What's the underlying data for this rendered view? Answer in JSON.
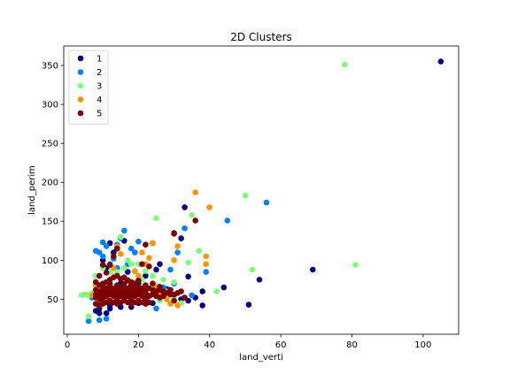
{
  "chart_data": {
    "type": "scatter",
    "title": "2D Clusters",
    "xlabel": "land_verti",
    "ylabel": "land_perim",
    "xlim": [
      -1,
      110
    ],
    "ylim": [
      5,
      375
    ],
    "xticks": [
      0,
      20,
      40,
      60,
      80,
      100
    ],
    "yticks": [
      50,
      100,
      150,
      200,
      250,
      300,
      350
    ],
    "grid": false,
    "legend_position": "top-left",
    "series": [
      {
        "name": "1",
        "color": "#00007f",
        "points": [
          [
            105,
            355
          ],
          [
            69,
            88
          ],
          [
            54,
            75
          ],
          [
            51,
            43
          ],
          [
            44,
            65
          ],
          [
            38,
            42
          ],
          [
            38,
            60
          ],
          [
            34,
            79
          ],
          [
            33,
            168
          ],
          [
            32,
            128
          ],
          [
            30,
            135
          ],
          [
            26,
            95
          ],
          [
            25,
            88
          ],
          [
            24,
            122
          ],
          [
            22,
            80
          ],
          [
            21,
            60
          ],
          [
            20,
            70
          ],
          [
            19,
            58
          ],
          [
            18,
            50
          ],
          [
            17,
            85
          ],
          [
            16,
            125
          ],
          [
            16,
            62
          ],
          [
            15,
            70
          ],
          [
            14,
            115
          ],
          [
            14,
            48
          ],
          [
            13,
            110
          ],
          [
            12,
            122
          ],
          [
            12,
            42
          ],
          [
            11,
            90
          ],
          [
            10,
            100
          ],
          [
            10,
            45
          ],
          [
            9,
            38
          ],
          [
            8,
            35
          ],
          [
            28,
            63
          ],
          [
            30,
            55
          ],
          [
            32,
            50
          ],
          [
            34,
            48
          ],
          [
            36,
            52
          ],
          [
            26,
            52
          ],
          [
            24,
            45
          ],
          [
            22,
            50
          ],
          [
            20,
            45
          ],
          [
            18,
            40
          ],
          [
            15,
            40
          ],
          [
            12,
            38
          ],
          [
            11,
            32
          ],
          [
            9,
            32
          ],
          [
            10,
            60
          ],
          [
            13,
            55
          ],
          [
            16,
            52
          ]
        ]
      },
      {
        "name": "2",
        "color": "#0080ff",
        "points": [
          [
            56,
            174
          ],
          [
            45,
            151
          ],
          [
            33,
            141
          ],
          [
            31,
            110
          ],
          [
            29,
            88
          ],
          [
            25,
            38
          ],
          [
            20,
            124
          ],
          [
            19,
            110
          ],
          [
            18,
            115
          ],
          [
            16,
            138
          ],
          [
            15,
            128
          ],
          [
            14,
            120
          ],
          [
            13,
            102
          ],
          [
            12,
            95
          ],
          [
            11,
            118
          ],
          [
            10,
            123
          ],
          [
            10,
            105
          ],
          [
            9,
            110
          ],
          [
            8,
            112
          ],
          [
            7,
            52
          ],
          [
            6,
            22
          ],
          [
            9,
            23
          ],
          [
            11,
            25
          ],
          [
            14,
            90
          ],
          [
            17,
            95
          ],
          [
            27,
            65
          ],
          [
            30,
            70
          ],
          [
            35,
            55
          ],
          [
            39,
            85
          ]
        ]
      },
      {
        "name": "3",
        "color": "#7cff79",
        "points": [
          [
            78,
            351
          ],
          [
            81,
            94
          ],
          [
            50,
            183
          ],
          [
            52,
            88
          ],
          [
            42,
            60
          ],
          [
            37,
            112
          ],
          [
            35,
            158
          ],
          [
            34,
            97
          ],
          [
            30,
            72
          ],
          [
            27,
            75
          ],
          [
            25,
            154
          ],
          [
            25,
            68
          ],
          [
            24,
            80
          ],
          [
            22,
            86
          ],
          [
            21,
            75
          ],
          [
            20,
            95
          ],
          [
            19,
            85
          ],
          [
            18,
            95
          ],
          [
            17,
            100
          ],
          [
            16,
            90
          ],
          [
            15,
            130
          ],
          [
            14,
            85
          ],
          [
            12,
            85
          ],
          [
            11,
            70
          ],
          [
            10,
            90
          ],
          [
            8,
            80
          ],
          [
            7,
            58
          ],
          [
            5,
            56
          ],
          [
            4,
            55
          ],
          [
            6,
            55
          ],
          [
            6,
            28
          ],
          [
            28,
            60
          ],
          [
            30,
            52
          ],
          [
            32,
            45
          ],
          [
            26,
            48
          ]
        ]
      },
      {
        "name": "4",
        "color": "#ff9400",
        "points": [
          [
            36,
            187
          ],
          [
            40,
            168
          ],
          [
            39,
            105
          ],
          [
            39,
            95
          ],
          [
            31,
            118
          ],
          [
            30,
            100
          ],
          [
            24,
            122
          ],
          [
            23,
            103
          ],
          [
            22,
            95
          ],
          [
            21,
            110
          ],
          [
            20,
            80
          ],
          [
            19,
            86
          ],
          [
            18,
            70
          ],
          [
            17,
            75
          ],
          [
            15,
            108
          ],
          [
            14,
            118
          ],
          [
            13,
            90
          ],
          [
            12,
            62
          ],
          [
            11,
            48
          ],
          [
            9,
            45
          ],
          [
            8,
            68
          ],
          [
            7,
            55
          ],
          [
            31,
            42
          ],
          [
            29,
            44
          ],
          [
            28,
            50
          ],
          [
            26,
            58
          ],
          [
            25,
            65
          ],
          [
            23,
            55
          ]
        ]
      },
      {
        "name": "5",
        "color": "#7f0000",
        "points": [
          [
            36,
            151
          ],
          [
            30,
            134
          ],
          [
            22,
            120
          ],
          [
            23,
            92
          ],
          [
            21,
            95
          ],
          [
            14,
            115
          ],
          [
            13,
            105
          ],
          [
            12,
            94
          ],
          [
            11,
            84
          ],
          [
            10,
            94
          ],
          [
            9,
            80
          ],
          [
            8,
            72
          ],
          [
            9,
            68
          ],
          [
            10,
            70
          ],
          [
            11,
            72
          ],
          [
            12,
            75
          ],
          [
            13,
            78
          ],
          [
            14,
            80
          ],
          [
            15,
            76
          ],
          [
            16,
            78
          ],
          [
            17,
            74
          ],
          [
            18,
            72
          ],
          [
            19,
            70
          ],
          [
            20,
            74
          ],
          [
            8,
            62
          ],
          [
            9,
            60
          ],
          [
            10,
            62
          ],
          [
            11,
            64
          ],
          [
            12,
            66
          ],
          [
            13,
            64
          ],
          [
            14,
            62
          ],
          [
            15,
            64
          ],
          [
            16,
            66
          ],
          [
            17,
            64
          ],
          [
            18,
            62
          ],
          [
            19,
            64
          ],
          [
            20,
            66
          ],
          [
            21,
            64
          ],
          [
            22,
            62
          ],
          [
            23,
            64
          ],
          [
            24,
            62
          ],
          [
            25,
            60
          ],
          [
            26,
            62
          ],
          [
            27,
            60
          ],
          [
            28,
            58
          ],
          [
            29,
            56
          ],
          [
            8,
            52
          ],
          [
            9,
            50
          ],
          [
            10,
            52
          ],
          [
            11,
            54
          ],
          [
            12,
            56
          ],
          [
            13,
            54
          ],
          [
            14,
            52
          ],
          [
            15,
            54
          ],
          [
            16,
            56
          ],
          [
            17,
            54
          ],
          [
            18,
            52
          ],
          [
            19,
            54
          ],
          [
            20,
            56
          ],
          [
            21,
            54
          ],
          [
            22,
            52
          ],
          [
            23,
            54
          ],
          [
            24,
            56
          ],
          [
            25,
            54
          ],
          [
            26,
            52
          ],
          [
            27,
            54
          ],
          [
            30,
            56
          ],
          [
            31,
            58
          ],
          [
            29,
            62
          ],
          [
            8,
            44
          ],
          [
            9,
            42
          ],
          [
            10,
            44
          ],
          [
            11,
            46
          ],
          [
            12,
            48
          ],
          [
            13,
            46
          ],
          [
            14,
            44
          ],
          [
            15,
            46
          ],
          [
            16,
            48
          ],
          [
            17,
            46
          ],
          [
            18,
            44
          ],
          [
            19,
            46
          ],
          [
            20,
            48
          ],
          [
            21,
            46
          ],
          [
            22,
            44
          ],
          [
            23,
            46
          ],
          [
            9,
            57
          ],
          [
            10,
            58
          ],
          [
            11,
            59
          ],
          [
            12,
            60
          ],
          [
            13,
            61
          ],
          [
            14,
            58
          ],
          [
            15,
            57
          ],
          [
            16,
            59
          ],
          [
            17,
            60
          ],
          [
            18,
            58
          ],
          [
            19,
            57
          ],
          [
            20,
            59
          ],
          [
            21,
            60
          ],
          [
            22,
            58
          ],
          [
            8,
            56
          ],
          [
            10,
            66
          ],
          [
            12,
            70
          ],
          [
            14,
            68
          ],
          [
            16,
            70
          ],
          [
            18,
            68
          ],
          [
            20,
            62
          ],
          [
            22,
            68
          ],
          [
            24,
            70
          ],
          [
            26,
            66
          ],
          [
            33,
            52
          ],
          [
            32,
            60
          ],
          [
            30,
            48
          ]
        ]
      }
    ]
  }
}
